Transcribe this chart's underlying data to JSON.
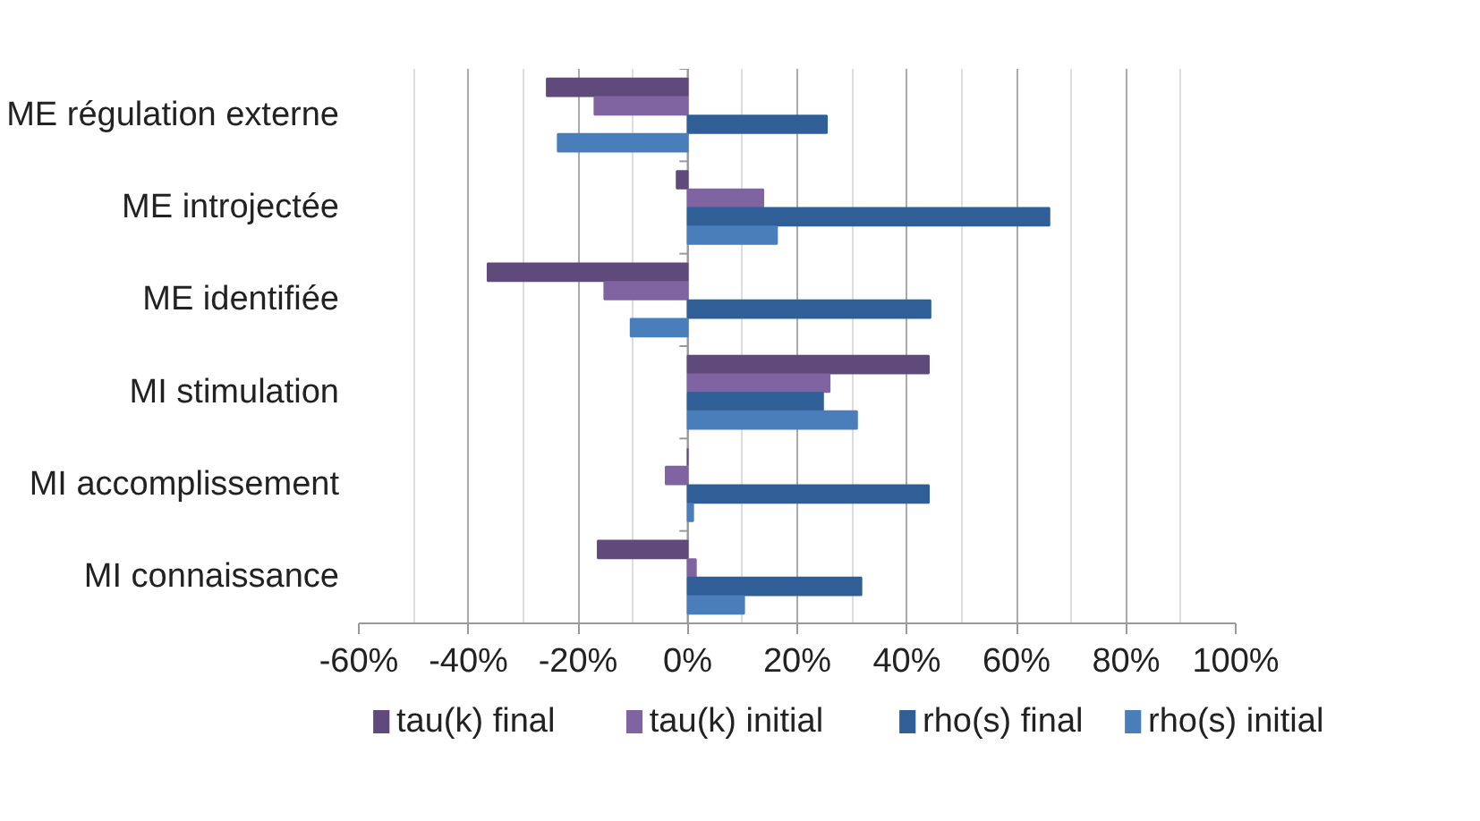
{
  "chart_data": {
    "type": "bar",
    "orientation": "horizontal",
    "categories": [
      "ME régulation externe",
      "ME introjectée",
      "ME identifiée",
      "MI stimulation",
      "MI accomplissement",
      "MI connaissance"
    ],
    "series": [
      {
        "name": "tau(k) final",
        "color": "#604a7b",
        "values": [
          -25.7,
          -2,
          -36.5,
          44,
          0,
          -16.4
        ]
      },
      {
        "name": "tau(k) initial",
        "color": "#8064a2",
        "values": [
          -17,
          13.8,
          -15.2,
          25.9,
          -4,
          1.5
        ]
      },
      {
        "name": "rho(s) final",
        "color": "#2f5f96",
        "values": [
          25.4,
          66,
          44.3,
          24.7,
          44,
          31.7
        ]
      },
      {
        "name": "rho(s) initial",
        "color": "#4a7ebb",
        "values": [
          -23.7,
          16.3,
          -10.4,
          30.9,
          1,
          10.3
        ]
      }
    ],
    "xlim": [
      -60,
      100
    ],
    "xticks": [
      {
        "value": -60,
        "label": "-60%"
      },
      {
        "value": -40,
        "label": "-40%"
      },
      {
        "value": -20,
        "label": "-20%"
      },
      {
        "value": 0,
        "label": "0%"
      },
      {
        "value": 20,
        "label": "20%"
      },
      {
        "value": 40,
        "label": "40%"
      },
      {
        "value": 60,
        "label": "60%"
      },
      {
        "value": 80,
        "label": "80%"
      },
      {
        "value": 100,
        "label": "100%"
      }
    ],
    "grid": "x",
    "legend": "bottom"
  }
}
